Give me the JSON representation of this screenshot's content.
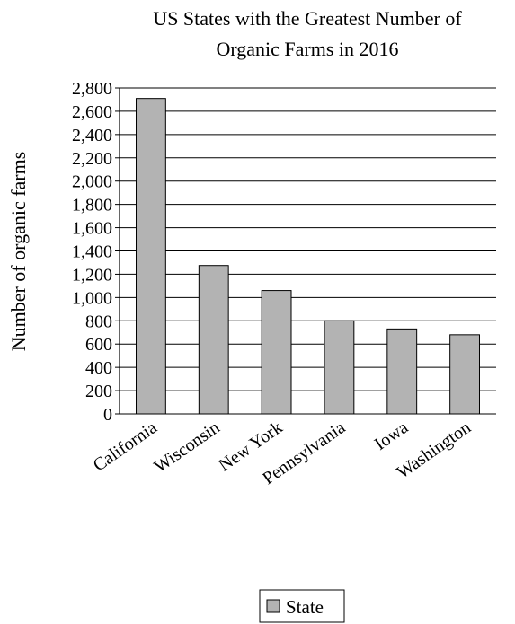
{
  "chart_data": {
    "type": "bar",
    "title": [
      "US States with the Greatest Number of",
      "Organic Farms in 2016"
    ],
    "ylabel": "Number of organic farms",
    "xlabel": "",
    "categories": [
      "California",
      "Wisconsin",
      "New York",
      "Pennsylvania",
      "Iowa",
      "Washington"
    ],
    "series": [
      {
        "name": "State",
        "values": [
          2710,
          1275,
          1060,
          800,
          730,
          680
        ]
      }
    ],
    "ylim": [
      0,
      2800
    ],
    "yticks": [
      0,
      200,
      400,
      600,
      800,
      1000,
      1200,
      1400,
      1600,
      1800,
      2000,
      2200,
      2400,
      2600,
      2800
    ],
    "ytick_labels": [
      "0",
      "200",
      "400",
      "600",
      "800",
      "1,000",
      "1,200",
      "1,400",
      "1,600",
      "1,800",
      "2,000",
      "2,200",
      "2,400",
      "2,600",
      "2,800"
    ],
    "grid": true,
    "legend": {
      "position": "bottom",
      "entries": [
        "State"
      ]
    },
    "colors": {
      "bar_fill": "#b3b3b3",
      "bar_stroke": "#000000",
      "grid": "#000000"
    }
  }
}
